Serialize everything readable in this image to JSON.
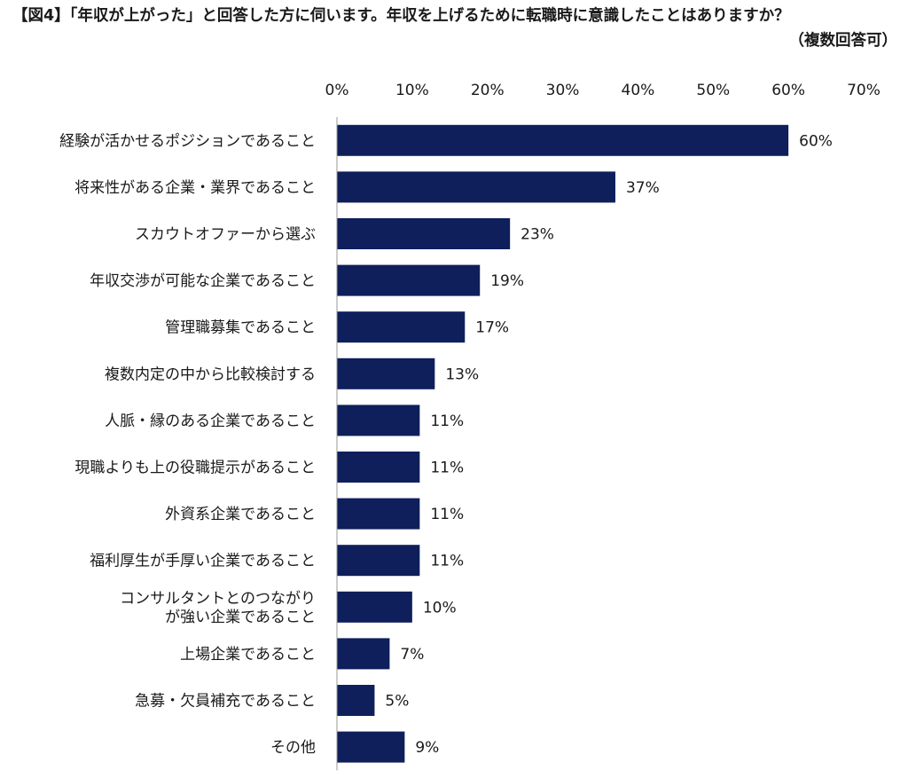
{
  "title": "【図4】「年収が上がった」と回答した方に伺います。年収を上げるために転職時に意識したことはありますか？",
  "title_note": "（複数回答可）",
  "colors": {
    "bar": "#0e1f5b",
    "axis": "#999999"
  },
  "chart_data": {
    "type": "bar",
    "orientation": "horizontal",
    "xlim": [
      0,
      70
    ],
    "ticks": [
      0,
      10,
      20,
      30,
      40,
      50,
      60,
      70
    ],
    "tick_labels": [
      "0%",
      "10%",
      "20%",
      "30%",
      "40%",
      "50%",
      "60%",
      "70%"
    ],
    "grid": false,
    "categories": [
      [
        "経験が活かせるポジションであること"
      ],
      [
        "将来性がある企業・業界であること"
      ],
      [
        "スカウトオファーから選ぶ"
      ],
      [
        "年収交渉が可能な企業であること"
      ],
      [
        "管理職募集であること"
      ],
      [
        "複数内定の中から比較検討する"
      ],
      [
        "人脈・縁のある企業であること"
      ],
      [
        "現職よりも上の役職提示があること"
      ],
      [
        "外資系企業であること"
      ],
      [
        "福利厚生が手厚い企業であること"
      ],
      [
        "コンサルタントとのつながり",
        "が強い企業であること"
      ],
      [
        "上場企業であること"
      ],
      [
        "急募・欠員補充であること"
      ],
      [
        "その他"
      ]
    ],
    "values": [
      60,
      37,
      23,
      19,
      17,
      13,
      11,
      11,
      11,
      11,
      10,
      7,
      5,
      9
    ],
    "value_labels": [
      "60%",
      "37%",
      "23%",
      "19%",
      "17%",
      "13%",
      "11%",
      "11%",
      "11%",
      "11%",
      "10%",
      "7%",
      "5%",
      "9%"
    ]
  }
}
